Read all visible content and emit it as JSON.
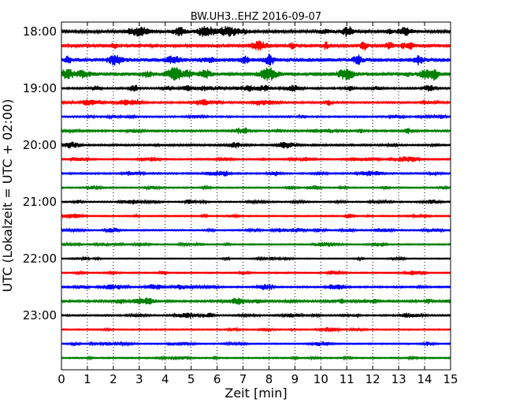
{
  "chart_data": {
    "type": "line",
    "title": "BW.UH3..EHZ 2016-09-07",
    "xlabel": "Zeit  [min]",
    "ylabel": "UTC (Lokalzeit = UTC + 02:00)",
    "xlim": [
      0,
      15
    ],
    "x_ticks": [
      "0",
      "1",
      "2",
      "3",
      "4",
      "5",
      "6",
      "7",
      "8",
      "9",
      "10",
      "11",
      "12",
      "13",
      "14",
      "15"
    ],
    "y_ticks": [
      "18:00",
      "19:00",
      "20:00",
      "21:00",
      "22:00",
      "23:00"
    ],
    "grid": "vertical dotted lines at each minute",
    "series_colors": [
      "#000000",
      "#ff0000",
      "#0000ff",
      "#008000"
    ],
    "rows": [
      {
        "time": "18:00",
        "color": "#000000",
        "amplitude": 0.55
      },
      {
        "time": "18:15",
        "color": "#ff0000",
        "amplitude": 0.65
      },
      {
        "time": "18:30",
        "color": "#0000ff",
        "amplitude": 0.75
      },
      {
        "time": "18:45",
        "color": "#008000",
        "amplitude": 0.7
      },
      {
        "time": "19:00",
        "color": "#000000",
        "amplitude": 0.35
      },
      {
        "time": "19:15",
        "color": "#ff0000",
        "amplitude": 0.35
      },
      {
        "time": "19:30",
        "color": "#0000ff",
        "amplitude": 0.3
      },
      {
        "time": "19:45",
        "color": "#008000",
        "amplitude": 0.35
      },
      {
        "time": "20:00",
        "color": "#000000",
        "amplitude": 0.35
      },
      {
        "time": "20:15",
        "color": "#ff0000",
        "amplitude": 0.3
      },
      {
        "time": "20:30",
        "color": "#0000ff",
        "amplitude": 0.3
      },
      {
        "time": "20:45",
        "color": "#008000",
        "amplitude": 0.25
      },
      {
        "time": "21:00",
        "color": "#000000",
        "amplitude": 0.25
      },
      {
        "time": "21:15",
        "color": "#ff0000",
        "amplitude": 0.25
      },
      {
        "time": "21:30",
        "color": "#0000ff",
        "amplitude": 0.25
      },
      {
        "time": "21:45",
        "color": "#008000",
        "amplitude": 0.25
      },
      {
        "time": "22:00",
        "color": "#000000",
        "amplitude": 0.2
      },
      {
        "time": "22:15",
        "color": "#ff0000",
        "amplitude": 0.25
      },
      {
        "time": "22:30",
        "color": "#0000ff",
        "amplitude": 0.3
      },
      {
        "time": "22:45",
        "color": "#008000",
        "amplitude": 0.4
      },
      {
        "time": "23:00",
        "color": "#000000",
        "amplitude": 0.3
      },
      {
        "time": "23:15",
        "color": "#ff0000",
        "amplitude": 0.25
      },
      {
        "time": "23:30",
        "color": "#0000ff",
        "amplitude": 0.25
      },
      {
        "time": "23:45",
        "color": "#008000",
        "amplitude": 0.25
      }
    ]
  }
}
